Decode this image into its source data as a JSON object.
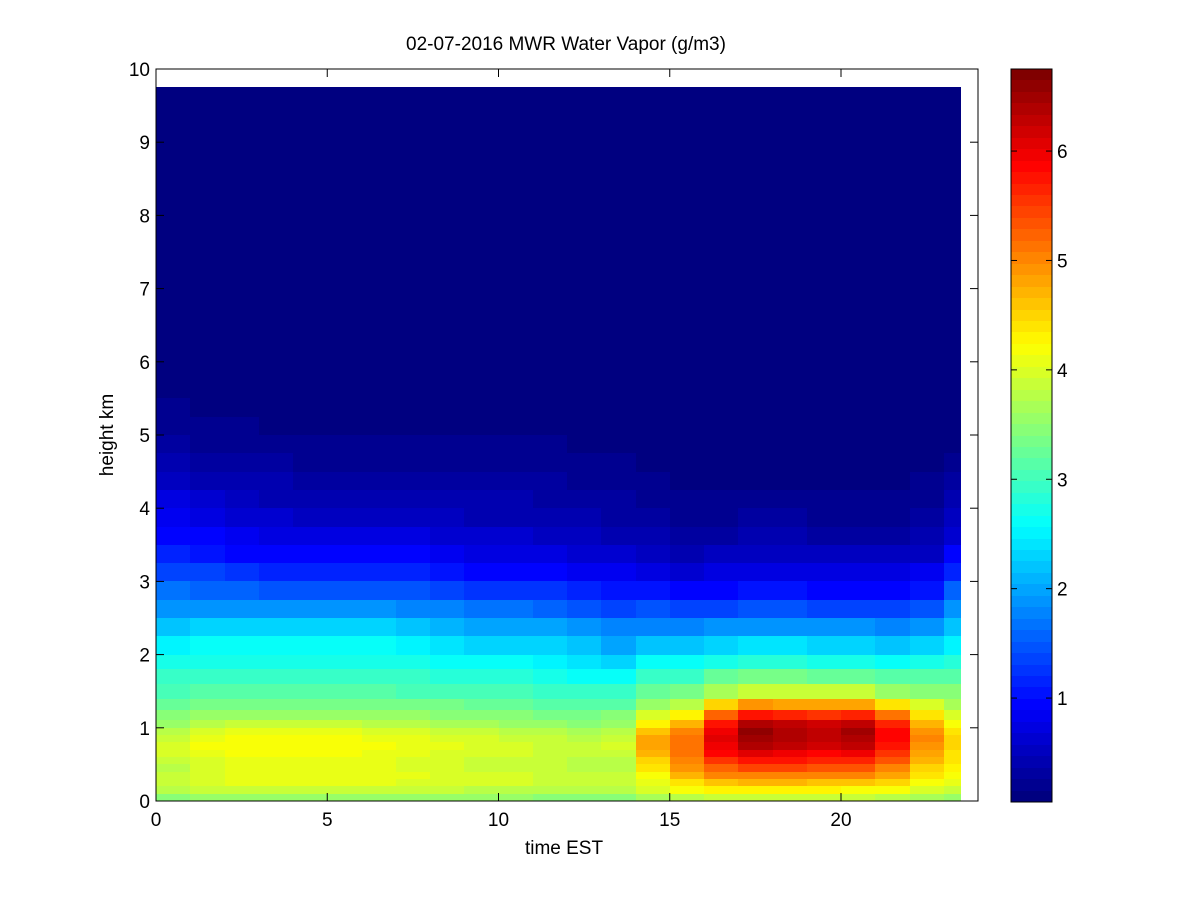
{
  "chart_data": {
    "type": "heatmap",
    "title": "02-07-2016 MWR Water Vapor (g/m3)",
    "xlabel": "time EST",
    "ylabel": "height km",
    "xlim": [
      0,
      24
    ],
    "ylim": [
      0,
      10
    ],
    "x_ticks": [
      0,
      5,
      10,
      15,
      20
    ],
    "y_ticks": [
      0,
      1,
      2,
      3,
      4,
      5,
      6,
      7,
      8,
      9,
      10
    ],
    "colorbar": {
      "colormap": "jet",
      "range": [
        0.05,
        6.75
      ],
      "ticks": [
        1,
        2,
        3,
        4,
        5,
        6
      ]
    },
    "x_centers": [
      0.5,
      1.5,
      2.5,
      3.5,
      4.5,
      5.5,
      6.5,
      7.5,
      8.5,
      9.5,
      10.5,
      11.5,
      12.5,
      13.5,
      14.5,
      15.5,
      16.5,
      17.5,
      18.5,
      19.5,
      20.5,
      21.5,
      22.5,
      23.5
    ],
    "x_edges_start": 0,
    "x_edges_end": 23.5,
    "height_edges_km": [
      0,
      0.1,
      0.2,
      0.3,
      0.4,
      0.5,
      0.6,
      0.7,
      0.8,
      0.9,
      1.0,
      1.1,
      1.25,
      1.4,
      1.6,
      1.8,
      2.0,
      2.25,
      2.5,
      2.75,
      3.0,
      3.25,
      3.5,
      3.75,
      4.0,
      4.25,
      4.5,
      4.75,
      5.0,
      5.25,
      5.5,
      9.75
    ],
    "profiles": [
      [
        3.5,
        3.8,
        3.9,
        3.9,
        3.8,
        3.9,
        4.0,
        4.0,
        3.9,
        3.8,
        3.6,
        3.4,
        3.2,
        3.05,
        2.9,
        2.7,
        2.5,
        2.2,
        1.9,
        1.6,
        1.35,
        1.15,
        0.95,
        0.8,
        0.65,
        0.5,
        0.38,
        0.25,
        0.18,
        0.12,
        0.05
      ],
      [
        3.6,
        3.9,
        4.0,
        4.0,
        3.95,
        4.0,
        4.1,
        4.15,
        4.1,
        4.0,
        3.8,
        3.55,
        3.3,
        3.1,
        2.95,
        2.75,
        2.55,
        2.25,
        1.9,
        1.55,
        1.3,
        1.05,
        0.85,
        0.7,
        0.55,
        0.4,
        0.3,
        0.2,
        0.14,
        0.1,
        0.05
      ],
      [
        3.6,
        3.9,
        4.05,
        4.1,
        4.05,
        4.05,
        4.15,
        4.2,
        4.15,
        4.1,
        3.9,
        3.6,
        3.35,
        3.1,
        2.95,
        2.75,
        2.55,
        2.25,
        1.85,
        1.5,
        1.2,
        0.95,
        0.75,
        0.6,
        0.45,
        0.35,
        0.25,
        0.17,
        0.12,
        0.08,
        0.05
      ],
      [
        3.6,
        3.9,
        4.05,
        4.1,
        4.05,
        4.05,
        4.15,
        4.2,
        4.15,
        4.1,
        3.9,
        3.6,
        3.35,
        3.1,
        2.95,
        2.75,
        2.55,
        2.25,
        1.85,
        1.45,
        1.15,
        0.9,
        0.7,
        0.55,
        0.42,
        0.32,
        0.22,
        0.15,
        0.1,
        0.07,
        0.05
      ],
      [
        3.6,
        3.9,
        4.05,
        4.1,
        4.05,
        4.05,
        4.15,
        4.2,
        4.15,
        4.05,
        3.85,
        3.6,
        3.35,
        3.1,
        2.95,
        2.75,
        2.55,
        2.25,
        1.85,
        1.45,
        1.1,
        0.85,
        0.65,
        0.5,
        0.4,
        0.3,
        0.2,
        0.14,
        0.1,
        0.07,
        0.05
      ],
      [
        3.6,
        3.9,
        4.05,
        4.1,
        4.05,
        4.05,
        4.15,
        4.2,
        4.15,
        4.05,
        3.85,
        3.6,
        3.35,
        3.1,
        2.95,
        2.75,
        2.55,
        2.25,
        1.85,
        1.45,
        1.1,
        0.85,
        0.65,
        0.5,
        0.4,
        0.3,
        0.2,
        0.14,
        0.1,
        0.07,
        0.05
      ],
      [
        3.6,
        3.9,
        4.05,
        4.1,
        4.05,
        4.05,
        4.1,
        4.15,
        4.1,
        4.0,
        3.8,
        3.55,
        3.35,
        3.1,
        2.95,
        2.75,
        2.55,
        2.25,
        1.85,
        1.45,
        1.1,
        0.85,
        0.65,
        0.5,
        0.4,
        0.3,
        0.2,
        0.14,
        0.1,
        0.07,
        0.05
      ],
      [
        3.6,
        3.85,
        4.0,
        4.05,
        4.0,
        4.0,
        4.05,
        4.1,
        4.05,
        3.95,
        3.75,
        3.55,
        3.3,
        3.05,
        2.9,
        2.7,
        2.5,
        2.2,
        1.8,
        1.4,
        1.1,
        0.85,
        0.65,
        0.5,
        0.4,
        0.3,
        0.2,
        0.14,
        0.1,
        0.07,
        0.05
      ],
      [
        3.55,
        3.85,
        3.95,
        4.0,
        3.95,
        3.95,
        4.0,
        4.05,
        4.0,
        3.9,
        3.7,
        3.5,
        3.3,
        3.05,
        2.85,
        2.65,
        2.4,
        2.1,
        1.7,
        1.35,
        1.05,
        0.8,
        0.6,
        0.48,
        0.38,
        0.28,
        0.2,
        0.14,
        0.1,
        0.07,
        0.05
      ],
      [
        3.55,
        3.8,
        3.95,
        3.95,
        3.9,
        3.9,
        3.95,
        4.0,
        3.95,
        3.85,
        3.65,
        3.45,
        3.25,
        3.0,
        2.8,
        2.55,
        2.3,
        2.0,
        1.6,
        1.25,
        0.95,
        0.72,
        0.55,
        0.42,
        0.32,
        0.24,
        0.17,
        0.12,
        0.08,
        0.06,
        0.05
      ],
      [
        3.55,
        3.8,
        3.95,
        3.95,
        3.9,
        3.9,
        3.95,
        3.95,
        3.9,
        3.8,
        3.6,
        3.4,
        3.2,
        3.0,
        2.8,
        2.55,
        2.3,
        2.0,
        1.6,
        1.25,
        0.95,
        0.72,
        0.55,
        0.42,
        0.32,
        0.24,
        0.17,
        0.12,
        0.08,
        0.06,
        0.05
      ],
      [
        3.5,
        3.75,
        3.9,
        3.9,
        3.85,
        3.85,
        3.9,
        3.9,
        3.85,
        3.75,
        3.55,
        3.35,
        3.15,
        2.95,
        2.75,
        2.5,
        2.25,
        1.95,
        1.55,
        1.2,
        0.9,
        0.68,
        0.5,
        0.4,
        0.3,
        0.22,
        0.16,
        0.11,
        0.08,
        0.06,
        0.05
      ],
      [
        3.5,
        3.75,
        3.85,
        3.85,
        3.8,
        3.8,
        3.85,
        3.85,
        3.8,
        3.7,
        3.5,
        3.3,
        3.1,
        2.9,
        2.65,
        2.4,
        2.15,
        1.85,
        1.45,
        1.1,
        0.82,
        0.6,
        0.45,
        0.35,
        0.26,
        0.2,
        0.14,
        0.1,
        0.07,
        0.05,
        0.05
      ],
      [
        3.5,
        3.75,
        3.85,
        3.85,
        3.8,
        3.8,
        3.9,
        3.95,
        3.9,
        3.8,
        3.6,
        3.4,
        3.15,
        2.9,
        2.6,
        2.3,
        2.0,
        1.7,
        1.35,
        1.0,
        0.75,
        0.55,
        0.4,
        0.3,
        0.22,
        0.16,
        0.12,
        0.08,
        0.06,
        0.05,
        0.05
      ],
      [
        3.7,
        4.0,
        4.1,
        4.25,
        4.4,
        4.55,
        4.7,
        4.8,
        4.8,
        4.6,
        4.3,
        3.95,
        3.55,
        3.2,
        2.9,
        2.55,
        2.2,
        1.8,
        1.4,
        1.0,
        0.72,
        0.5,
        0.36,
        0.26,
        0.18,
        0.13,
        0.09,
        0.06,
        0.05,
        0.05,
        0.05
      ],
      [
        3.8,
        4.2,
        4.4,
        4.7,
        4.9,
        5.05,
        5.15,
        5.2,
        5.2,
        5.0,
        4.7,
        4.3,
        3.8,
        3.35,
        2.95,
        2.55,
        2.15,
        1.75,
        1.3,
        0.9,
        0.62,
        0.42,
        0.3,
        0.2,
        0.14,
        0.1,
        0.07,
        0.05,
        0.05,
        0.05,
        0.05
      ],
      [
        3.85,
        4.3,
        4.6,
        5.0,
        5.3,
        5.6,
        5.85,
        6.0,
        6.1,
        6.05,
        5.8,
        5.3,
        4.5,
        3.7,
        3.2,
        2.75,
        2.3,
        1.85,
        1.35,
        0.95,
        0.65,
        0.45,
        0.3,
        0.2,
        0.13,
        0.09,
        0.06,
        0.05,
        0.05,
        0.05,
        0.05
      ],
      [
        3.9,
        4.35,
        4.7,
        5.1,
        5.45,
        5.8,
        6.1,
        6.4,
        6.55,
        6.6,
        6.4,
        5.8,
        4.9,
        3.9,
        3.3,
        2.8,
        2.35,
        1.9,
        1.4,
        1.0,
        0.7,
        0.48,
        0.32,
        0.22,
        0.14,
        0.09,
        0.06,
        0.05,
        0.05,
        0.05,
        0.05
      ],
      [
        3.9,
        4.35,
        4.7,
        5.1,
        5.45,
        5.8,
        6.05,
        6.3,
        6.4,
        6.45,
        6.3,
        5.7,
        4.85,
        3.9,
        3.3,
        2.8,
        2.35,
        1.9,
        1.4,
        1.0,
        0.7,
        0.48,
        0.32,
        0.22,
        0.14,
        0.09,
        0.06,
        0.05,
        0.05,
        0.05,
        0.05
      ],
      [
        3.9,
        4.3,
        4.65,
        5.05,
        5.4,
        5.7,
        5.95,
        6.2,
        6.3,
        6.35,
        6.2,
        5.6,
        4.8,
        3.85,
        3.25,
        2.75,
        2.3,
        1.85,
        1.35,
        0.95,
        0.66,
        0.45,
        0.3,
        0.2,
        0.13,
        0.09,
        0.06,
        0.05,
        0.05,
        0.05,
        0.05
      ],
      [
        3.85,
        4.25,
        4.6,
        5.0,
        5.35,
        5.7,
        6.0,
        6.3,
        6.45,
        6.5,
        6.3,
        5.7,
        4.85,
        3.85,
        3.25,
        2.75,
        2.3,
        1.85,
        1.35,
        0.95,
        0.66,
        0.45,
        0.3,
        0.2,
        0.13,
        0.09,
        0.06,
        0.05,
        0.05,
        0.05,
        0.05
      ],
      [
        3.8,
        4.2,
        4.5,
        4.85,
        5.1,
        5.35,
        5.6,
        5.8,
        5.9,
        5.9,
        5.7,
        5.2,
        4.4,
        3.6,
        3.1,
        2.65,
        2.2,
        1.8,
        1.35,
        0.95,
        0.66,
        0.45,
        0.3,
        0.2,
        0.13,
        0.09,
        0.06,
        0.05,
        0.05,
        0.05,
        0.05
      ],
      [
        3.7,
        4.0,
        4.2,
        4.4,
        4.55,
        4.7,
        4.85,
        4.95,
        5.0,
        4.95,
        4.75,
        4.4,
        3.95,
        3.5,
        3.1,
        2.7,
        2.3,
        1.9,
        1.45,
        1.05,
        0.75,
        0.52,
        0.36,
        0.25,
        0.17,
        0.12,
        0.08,
        0.06,
        0.05,
        0.05,
        0.05
      ],
      [
        3.6,
        3.9,
        4.05,
        4.2,
        4.3,
        4.4,
        4.45,
        4.5,
        4.5,
        4.4,
        4.2,
        3.95,
        3.7,
        3.4,
        3.1,
        2.8,
        2.5,
        2.2,
        1.85,
        1.5,
        1.15,
        0.85,
        0.62,
        0.45,
        0.32,
        0.22,
        0.15,
        0.1,
        0.07,
        0.05,
        0.05
      ]
    ]
  }
}
